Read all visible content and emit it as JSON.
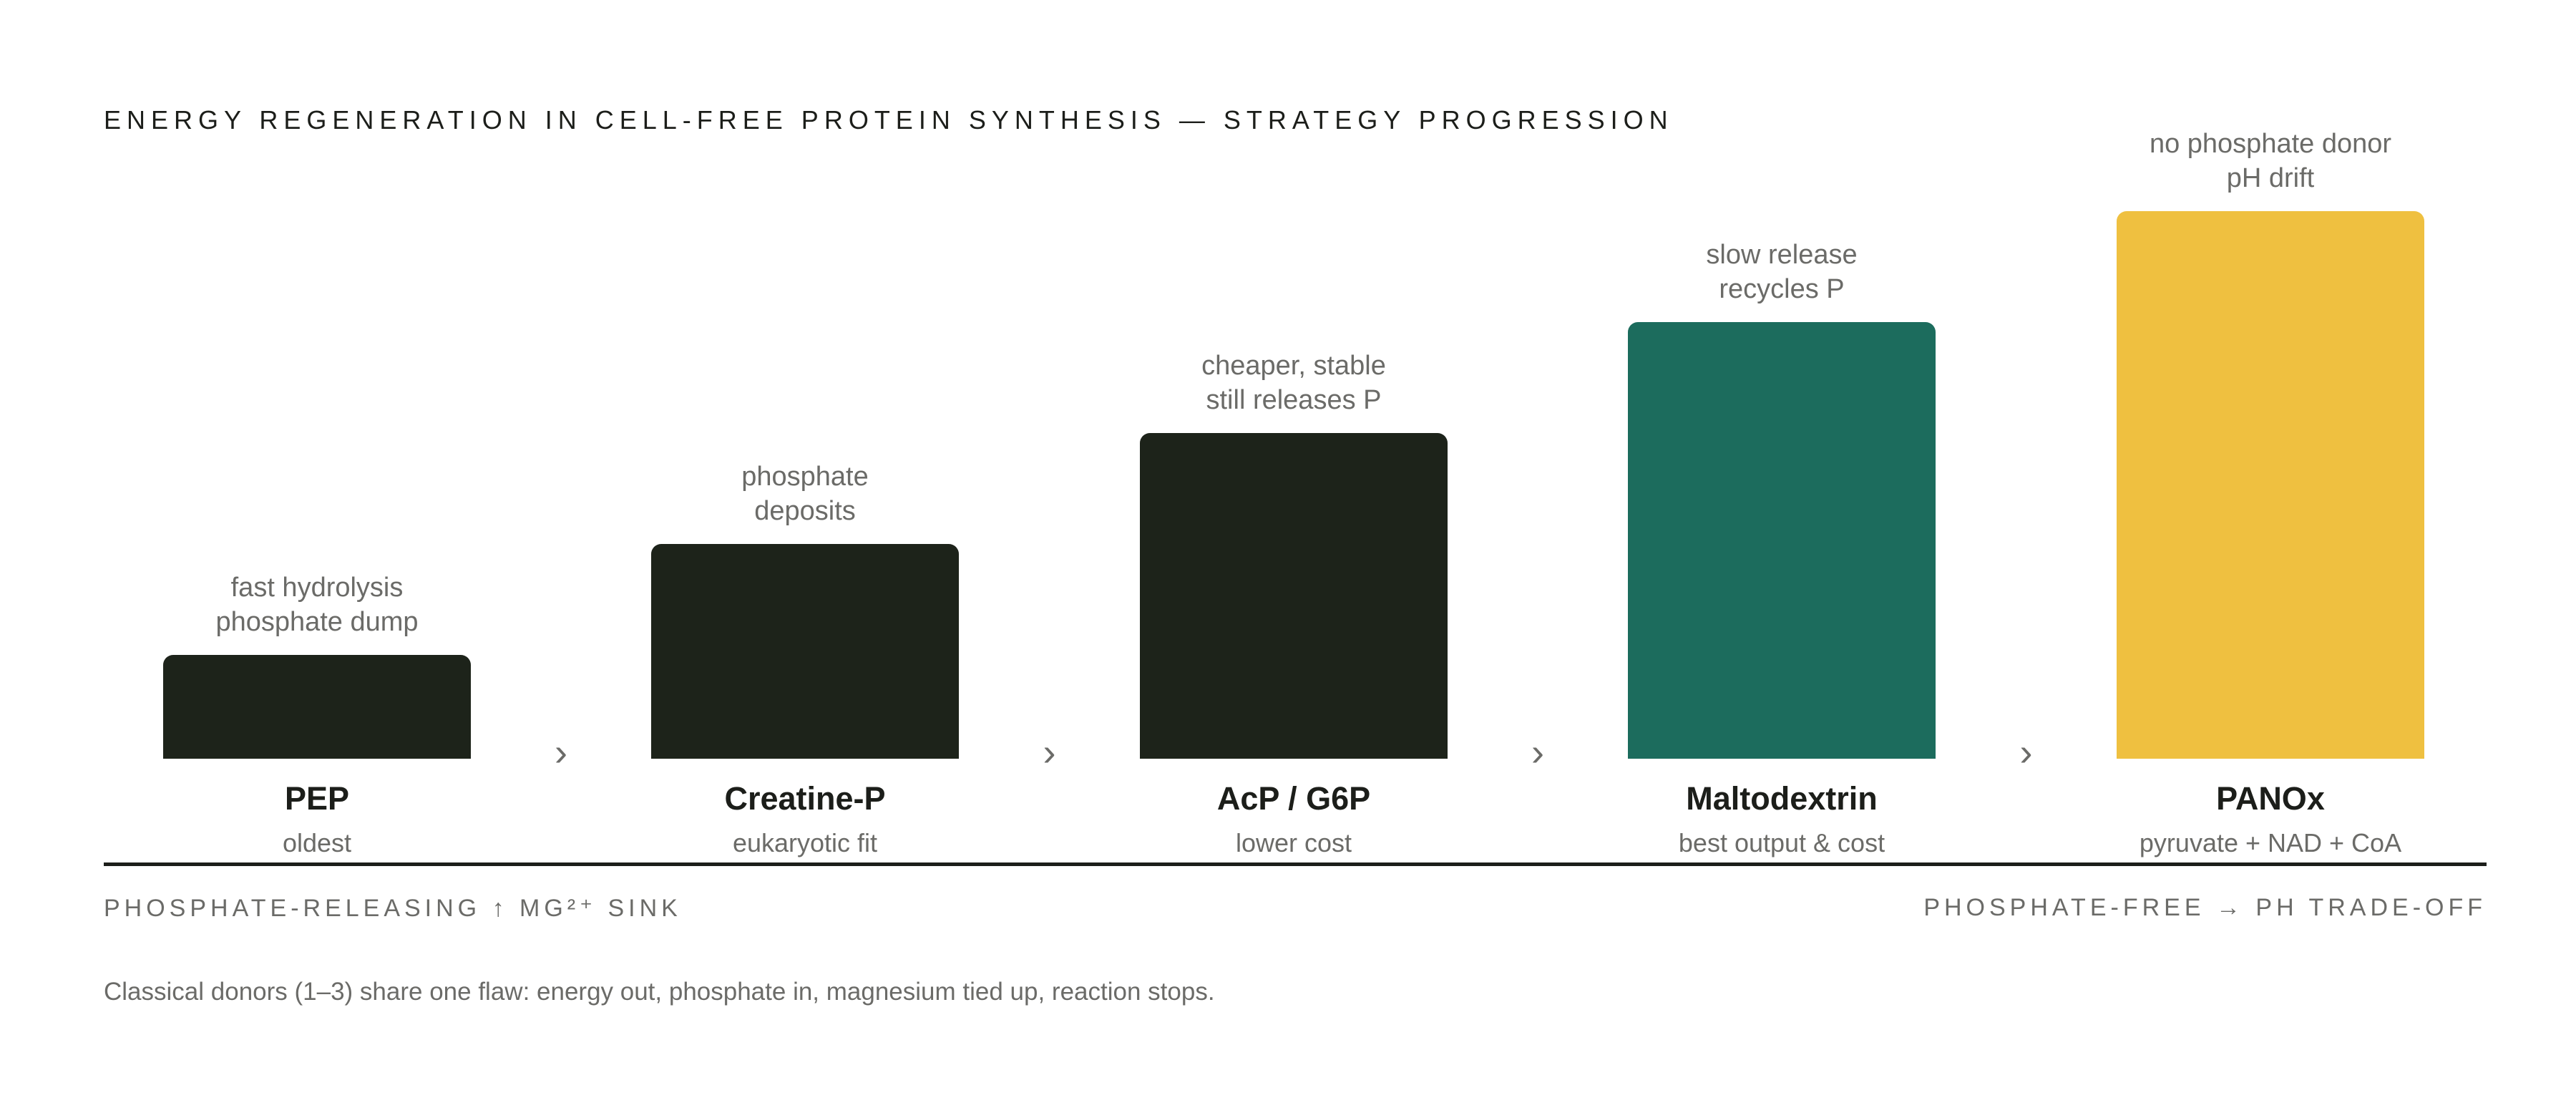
{
  "title": "ENERGY REGENERATION IN CELL-FREE PROTEIN SYNTHESIS — STRATEGY PROGRESSION",
  "colors": {
    "classical": "#1d231a",
    "improved": "#1c6c5d",
    "novel": "#efc040",
    "text_dark": "#1c1e1a",
    "text_muted": "#6b6b68"
  },
  "chevron_glyph": "›",
  "strategies": [
    {
      "name": "PEP",
      "subtitle": "oldest",
      "note_lines": [
        "fast hydrolysis",
        "phosphate dump"
      ],
      "level": 1,
      "color": "#1d231a"
    },
    {
      "name": "Creatine-P",
      "subtitle": "eukaryotic fit",
      "note_lines": [
        "phosphate",
        "deposits"
      ],
      "level": 2,
      "color": "#1d231a"
    },
    {
      "name": "AcP / G6P",
      "subtitle": "lower cost",
      "note_lines": [
        "cheaper, stable",
        "still releases P"
      ],
      "level": 3,
      "color": "#1d231a"
    },
    {
      "name": "Maltodextrin",
      "subtitle": "best output & cost",
      "note_lines": [
        "slow release",
        "recycles P"
      ],
      "level": 4,
      "color": "#1c6c5d"
    },
    {
      "name": "PANOx",
      "subtitle": "pyruvate + NAD + CoA",
      "note_lines": [
        "no phosphate donor",
        "pH drift"
      ],
      "level": 5,
      "color": "#efc040"
    }
  ],
  "axis": {
    "left_label": "PHOSPHATE-RELEASING ↑ MG²⁺ SINK",
    "right_label": "PHOSPHATE-FREE → PH TRADE-OFF"
  },
  "footnote": "Classical donors (1–3) share one flaw: energy out, phosphate in, magnesium tied up, reaction stops."
}
